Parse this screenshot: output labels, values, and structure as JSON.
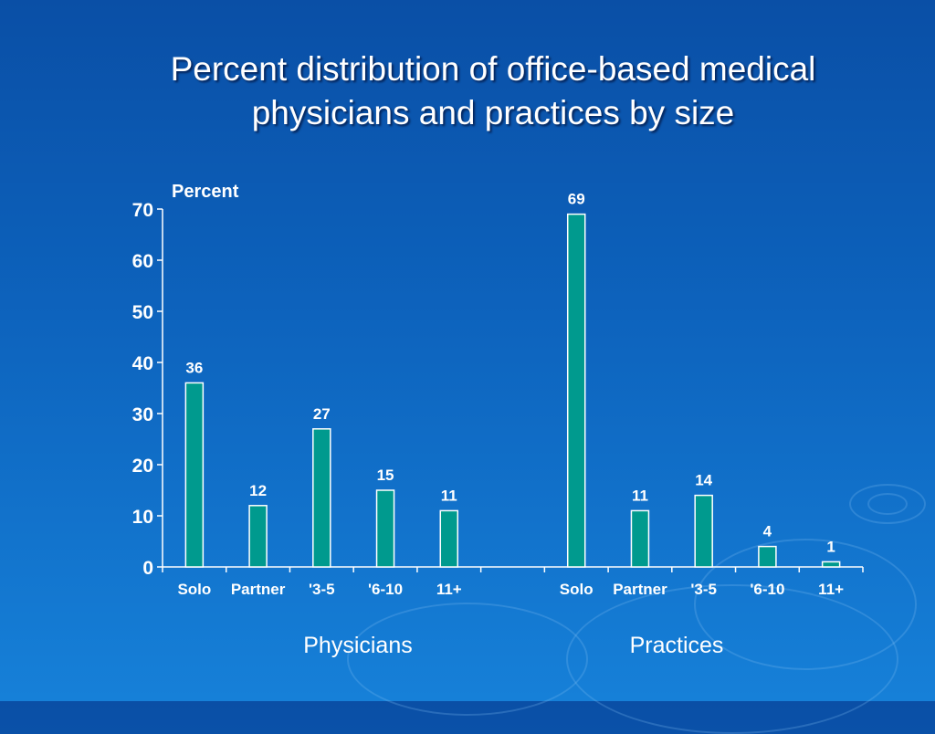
{
  "slide": {
    "title_line1": "Percent distribution of office-based medical",
    "title_line2": "physicians and practices by size",
    "group_labels": [
      "Physicians",
      "Practices"
    ]
  },
  "colors": {
    "bar_fill": "#009a8e",
    "bar_stroke": "#ffffff",
    "text": "#ffffff",
    "background": "#0d63bd"
  },
  "chart_data": {
    "type": "bar",
    "ylabel": "Percent",
    "ylim": [
      0,
      70
    ],
    "yticks": [
      0,
      10,
      20,
      30,
      40,
      50,
      60,
      70
    ],
    "grid": false,
    "legend": "none",
    "categories": [
      "Solo",
      "Partner",
      "'3-5",
      "'6-10",
      "11+",
      "",
      "Solo",
      "Partner",
      "'3-5",
      "'6-10",
      "11+"
    ],
    "series": [
      {
        "values": [
          36,
          12,
          27,
          15,
          11,
          null,
          69,
          11,
          14,
          4,
          1
        ]
      }
    ]
  }
}
